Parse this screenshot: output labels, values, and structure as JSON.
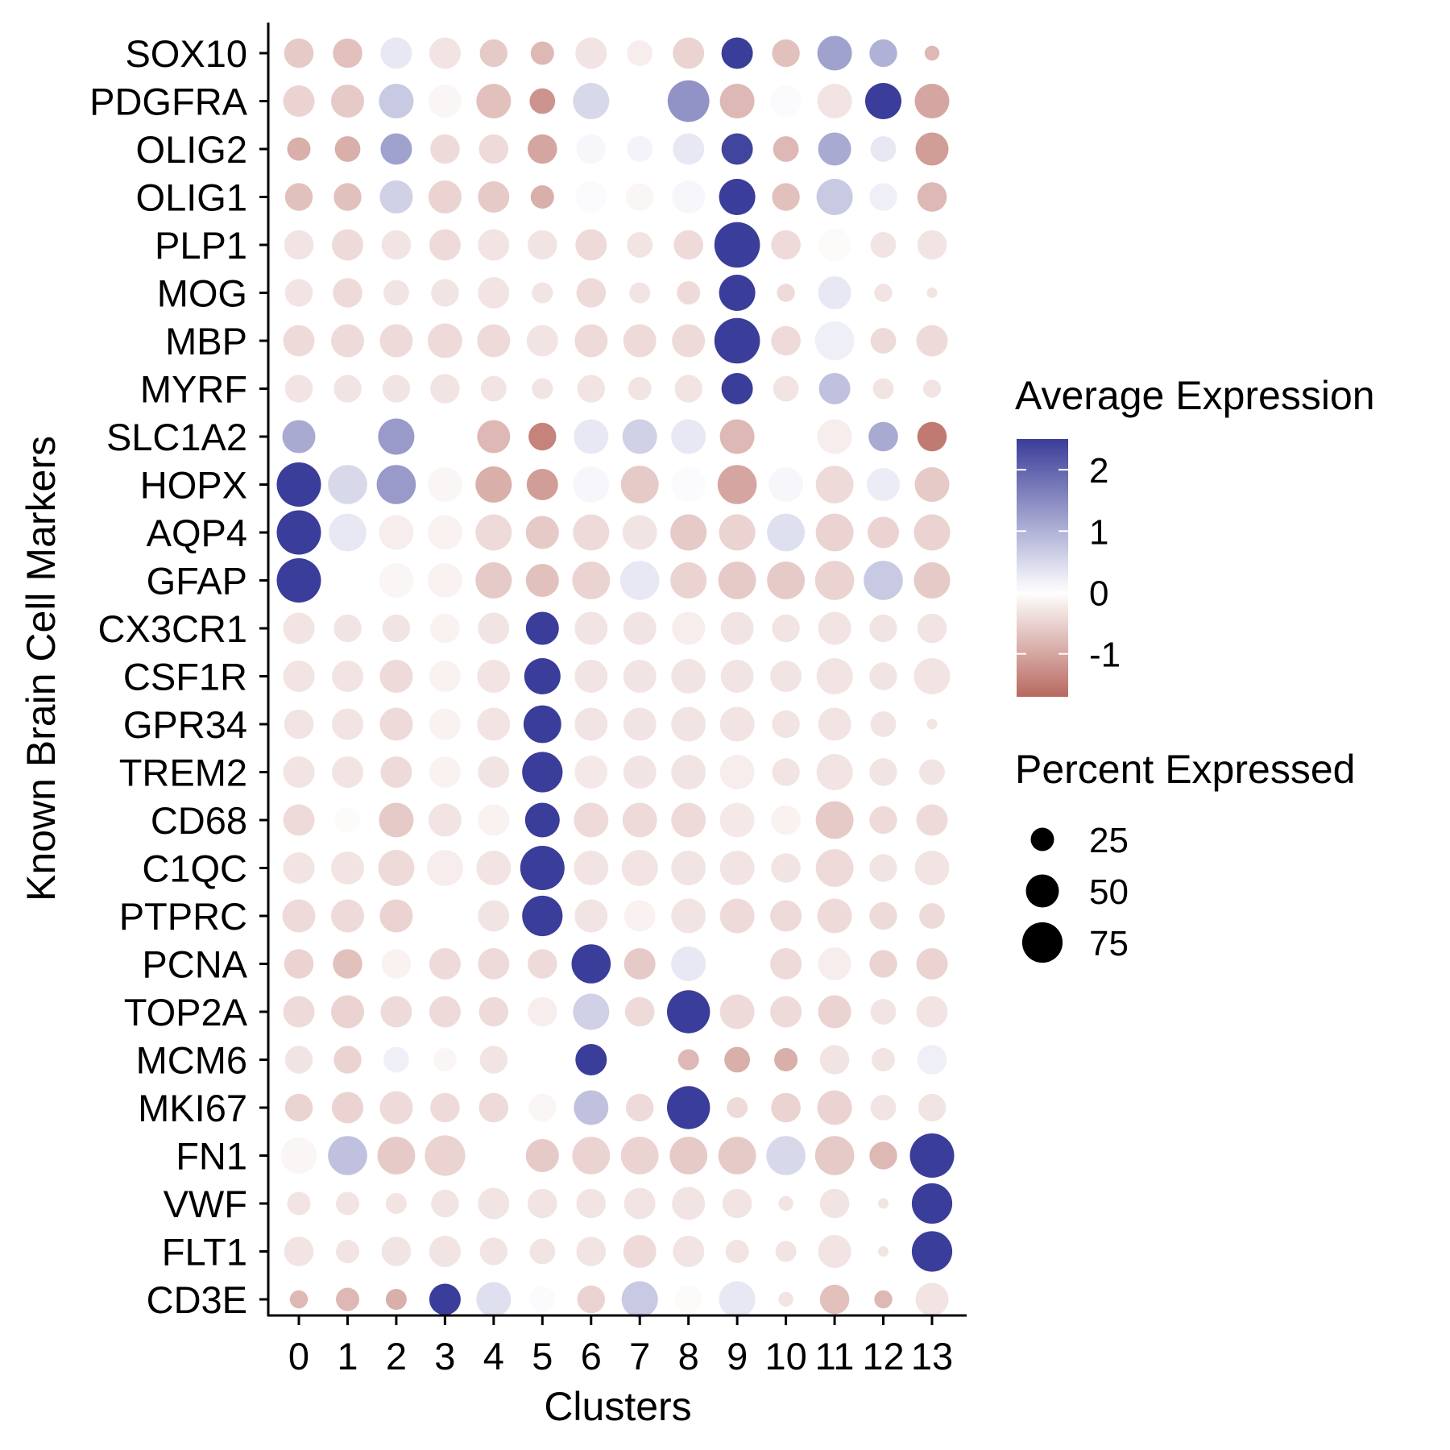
{
  "chart_data": {
    "type": "dotplot",
    "title": "",
    "xlabel": "Clusters",
    "ylabel": "Known Brain Cell Markers",
    "x_categories": [
      "0",
      "1",
      "2",
      "3",
      "4",
      "5",
      "6",
      "7",
      "8",
      "9",
      "10",
      "11",
      "12",
      "13"
    ],
    "y_categories": [
      "SOX10",
      "PDGFRA",
      "OLIG2",
      "OLIG1",
      "PLP1",
      "MOG",
      "MBP",
      "MYRF",
      "SLC1A2",
      "HOPX",
      "AQP4",
      "GFAP",
      "CX3CR1",
      "CSF1R",
      "GPR34",
      "TREM2",
      "CD68",
      "C1QC",
      "PTPRC",
      "PCNA",
      "TOP2A",
      "MCM6",
      "MKI67",
      "FN1",
      "VWF",
      "FLT1",
      "CD3E"
    ],
    "grid": false,
    "legend_position": "right",
    "color_legend": {
      "title": "Average Expression",
      "ticks": [
        "2",
        "1",
        "0",
        "-1"
      ],
      "tick_values": [
        2,
        1,
        0,
        -1
      ],
      "range": [
        -1.7,
        2.5
      ],
      "low_color": "#b8685f",
      "mid_color": "#ffffff",
      "high_color": "#3a3d99"
    },
    "size_legend": {
      "title": "Percent Expressed",
      "labels": [
        "25",
        "50",
        "75"
      ],
      "values": [
        25,
        50,
        75
      ]
    },
    "expression": [
      [
        -0.6,
        -0.7,
        0.3,
        -0.3,
        -0.6,
        -0.8,
        -0.3,
        -0.2,
        -0.5,
        2.5,
        -0.7,
        1.2,
        1.0,
        -0.8
      ],
      [
        -0.5,
        -0.6,
        0.7,
        -0.1,
        -0.7,
        -1.2,
        0.5,
        0.0,
        1.4,
        -0.8,
        0.05,
        -0.3,
        2.5,
        -1.0
      ],
      [
        -0.9,
        -0.9,
        1.2,
        -0.4,
        -0.4,
        -1.0,
        0.1,
        0.15,
        0.3,
        2.4,
        -0.8,
        1.1,
        0.3,
        -1.1
      ],
      [
        -0.7,
        -0.7,
        0.6,
        -0.5,
        -0.6,
        -0.9,
        0.05,
        -0.1,
        0.1,
        2.5,
        -0.7,
        0.7,
        0.2,
        -0.8
      ],
      [
        -0.3,
        -0.4,
        -0.3,
        -0.4,
        -0.3,
        -0.3,
        -0.4,
        -0.3,
        -0.4,
        2.5,
        -0.4,
        -0.05,
        -0.3,
        -0.3
      ],
      [
        -0.3,
        -0.4,
        -0.3,
        -0.3,
        -0.3,
        -0.3,
        -0.4,
        -0.3,
        -0.4,
        2.5,
        -0.4,
        0.3,
        -0.3,
        -0.3
      ],
      [
        -0.4,
        -0.4,
        -0.4,
        -0.4,
        -0.4,
        -0.3,
        -0.4,
        -0.4,
        -0.4,
        2.5,
        -0.4,
        0.2,
        -0.4,
        -0.4
      ],
      [
        -0.3,
        -0.3,
        -0.3,
        -0.3,
        -0.3,
        -0.3,
        -0.3,
        -0.3,
        -0.3,
        2.5,
        -0.3,
        0.8,
        -0.3,
        -0.3
      ],
      [
        1.1,
        0.0,
        1.3,
        0.0,
        -0.8,
        -1.4,
        0.3,
        0.6,
        0.3,
        -0.8,
        0.0,
        -0.2,
        1.1,
        -1.5
      ],
      [
        2.5,
        0.5,
        1.3,
        -0.1,
        -0.9,
        -1.1,
        0.1,
        -0.6,
        0.05,
        -1.0,
        0.1,
        -0.4,
        0.25,
        -0.6
      ],
      [
        2.5,
        0.3,
        -0.2,
        -0.15,
        -0.4,
        -0.6,
        -0.4,
        -0.3,
        -0.6,
        -0.5,
        0.4,
        -0.5,
        -0.5,
        -0.5
      ],
      [
        2.5,
        0.0,
        -0.1,
        -0.15,
        -0.6,
        -0.7,
        -0.5,
        0.3,
        -0.5,
        -0.6,
        -0.6,
        -0.5,
        0.7,
        -0.6
      ],
      [
        -0.3,
        -0.3,
        -0.3,
        -0.15,
        -0.3,
        2.5,
        -0.3,
        -0.3,
        -0.2,
        -0.3,
        -0.3,
        -0.3,
        -0.3,
        -0.3
      ],
      [
        -0.3,
        -0.3,
        -0.4,
        -0.15,
        -0.3,
        2.5,
        -0.3,
        -0.3,
        -0.3,
        -0.3,
        -0.3,
        -0.3,
        -0.3,
        -0.3
      ],
      [
        -0.3,
        -0.3,
        -0.4,
        -0.15,
        -0.3,
        2.5,
        -0.3,
        -0.3,
        -0.3,
        -0.3,
        -0.3,
        -0.3,
        -0.3,
        -0.3
      ],
      [
        -0.3,
        -0.3,
        -0.4,
        -0.15,
        -0.3,
        2.5,
        -0.25,
        -0.3,
        -0.3,
        -0.2,
        -0.3,
        -0.3,
        -0.3,
        -0.3
      ],
      [
        -0.4,
        -0.05,
        -0.6,
        -0.3,
        -0.15,
        2.5,
        -0.4,
        -0.4,
        -0.4,
        -0.25,
        -0.15,
        -0.6,
        -0.4,
        -0.4
      ],
      [
        -0.3,
        -0.3,
        -0.4,
        -0.2,
        -0.3,
        2.5,
        -0.3,
        -0.3,
        -0.3,
        -0.3,
        -0.3,
        -0.4,
        -0.3,
        -0.3
      ],
      [
        -0.4,
        -0.4,
        -0.5,
        0.0,
        -0.3,
        2.5,
        -0.3,
        -0.15,
        -0.3,
        -0.4,
        -0.4,
        -0.4,
        -0.4,
        -0.4
      ],
      [
        -0.5,
        -0.7,
        -0.15,
        -0.4,
        -0.4,
        -0.4,
        2.5,
        -0.6,
        0.3,
        0.0,
        -0.4,
        -0.2,
        -0.5,
        -0.5
      ],
      [
        -0.4,
        -0.5,
        -0.4,
        -0.4,
        -0.4,
        -0.2,
        0.6,
        -0.4,
        2.5,
        -0.4,
        -0.4,
        -0.5,
        -0.3,
        -0.3
      ],
      [
        -0.3,
        -0.5,
        0.2,
        -0.1,
        -0.3,
        0.0,
        2.5,
        0.0,
        -0.8,
        -0.9,
        -0.9,
        -0.3,
        -0.3,
        0.2
      ],
      [
        -0.5,
        -0.5,
        -0.4,
        -0.4,
        -0.4,
        -0.1,
        0.8,
        -0.4,
        2.5,
        -0.4,
        -0.5,
        -0.5,
        -0.3,
        -0.3
      ],
      [
        -0.1,
        0.8,
        -0.6,
        -0.5,
        0.0,
        -0.6,
        -0.5,
        -0.5,
        -0.6,
        -0.6,
        0.5,
        -0.6,
        -0.8,
        2.5
      ],
      [
        -0.3,
        -0.3,
        -0.3,
        -0.3,
        -0.3,
        -0.3,
        -0.3,
        -0.3,
        -0.3,
        -0.3,
        -0.3,
        -0.3,
        -0.3,
        2.5
      ],
      [
        -0.3,
        -0.3,
        -0.3,
        -0.3,
        -0.3,
        -0.3,
        -0.3,
        -0.4,
        -0.3,
        -0.3,
        -0.3,
        -0.3,
        -0.3,
        2.5
      ],
      [
        -0.8,
        -0.8,
        -0.9,
        2.5,
        0.4,
        0.05,
        -0.5,
        0.7,
        -0.05,
        0.3,
        -0.3,
        -0.7,
        -0.8,
        -0.3
      ]
    ],
    "percent": [
      [
        40,
        40,
        45,
        45,
        35,
        25,
        45,
        30,
        45,
        45,
        35,
        55,
        35,
        10
      ],
      [
        45,
        50,
        55,
        50,
        55,
        30,
        60,
        40,
        80,
        55,
        45,
        55,
        60,
        55
      ],
      [
        25,
        30,
        45,
        40,
        40,
        40,
        40,
        30,
        45,
        45,
        30,
        50,
        30,
        50
      ],
      [
        35,
        35,
        50,
        50,
        45,
        25,
        45,
        35,
        50,
        60,
        35,
        60,
        35,
        40
      ],
      [
        40,
        45,
        40,
        45,
        45,
        40,
        45,
        30,
        40,
        95,
        40,
        50,
        30,
        40
      ],
      [
        35,
        40,
        30,
        35,
        45,
        20,
        40,
        20,
        25,
        60,
        15,
        50,
        15,
        5
      ],
      [
        45,
        50,
        50,
        55,
        50,
        45,
        50,
        50,
        50,
        95,
        40,
        70,
        30,
        45
      ],
      [
        35,
        35,
        35,
        40,
        30,
        20,
        35,
        25,
        35,
        45,
        30,
        45,
        20,
        15
      ],
      [
        50,
        40,
        60,
        40,
        50,
        35,
        55,
        55,
        55,
        55,
        35,
        55,
        40,
        40
      ],
      [
        90,
        70,
        70,
        55,
        60,
        45,
        60,
        65,
        55,
        70,
        55,
        65,
        50,
        55
      ],
      [
        90,
        65,
        55,
        55,
        60,
        50,
        60,
        55,
        60,
        60,
        65,
        65,
        45,
        60
      ],
      [
        90,
        60,
        55,
        55,
        60,
        50,
        65,
        70,
        60,
        65,
        65,
        70,
        70,
        60
      ],
      [
        45,
        35,
        35,
        40,
        45,
        50,
        50,
        50,
        50,
        50,
        35,
        50,
        35,
        40
      ],
      [
        45,
        45,
        50,
        45,
        50,
        60,
        50,
        50,
        55,
        50,
        45,
        60,
        35,
        60
      ],
      [
        40,
        45,
        50,
        45,
        50,
        65,
        50,
        50,
        55,
        55,
        35,
        50,
        30,
        5
      ],
      [
        45,
        45,
        45,
        45,
        45,
        75,
        50,
        50,
        55,
        55,
        35,
        60,
        35,
        30
      ],
      [
        45,
        30,
        55,
        50,
        45,
        55,
        55,
        55,
        55,
        55,
        40,
        65,
        35,
        45
      ],
      [
        45,
        50,
        60,
        60,
        55,
        90,
        55,
        60,
        55,
        55,
        40,
        65,
        35,
        55
      ],
      [
        50,
        50,
        50,
        45,
        45,
        75,
        50,
        45,
        55,
        55,
        45,
        55,
        35,
        30
      ],
      [
        40,
        40,
        40,
        45,
        45,
        40,
        70,
        45,
        55,
        45,
        45,
        50,
        35,
        45
      ],
      [
        45,
        50,
        45,
        45,
        40,
        40,
        60,
        40,
        85,
        55,
        45,
        50,
        30,
        45
      ],
      [
        35,
        35,
        30,
        25,
        35,
        25,
        45,
        25,
        20,
        30,
        25,
        40,
        25,
        40
      ],
      [
        35,
        45,
        50,
        40,
        40,
        35,
        55,
        35,
        85,
        20,
        40,
        55,
        30,
        35
      ],
      [
        60,
        70,
        65,
        75,
        50,
        50,
        65,
        65,
        65,
        65,
        70,
        70,
        35,
        90
      ],
      [
        25,
        25,
        20,
        35,
        45,
        40,
        40,
        45,
        50,
        40,
        10,
        40,
        5,
        75
      ],
      [
        40,
        25,
        40,
        45,
        35,
        30,
        40,
        50,
        45,
        25,
        20,
        50,
        5,
        75
      ],
      [
        15,
        25,
        20,
        45,
        55,
        30,
        35,
        60,
        35,
        60,
        10,
        40,
        15,
        50
      ]
    ]
  }
}
